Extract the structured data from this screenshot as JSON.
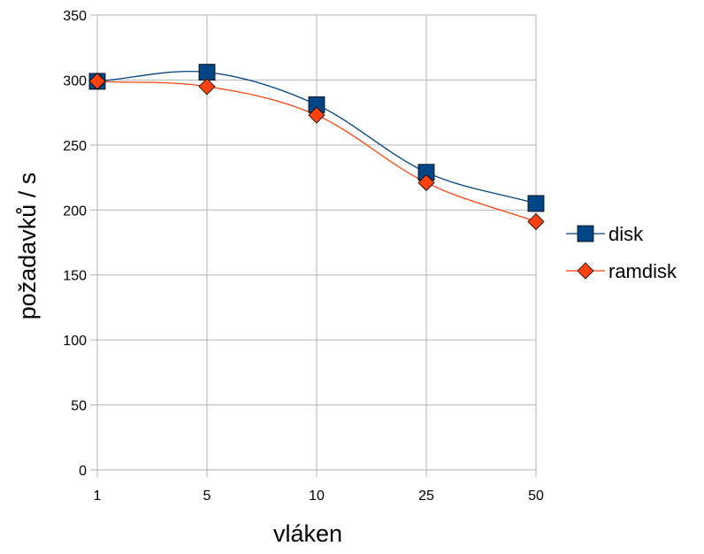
{
  "chart_data": {
    "type": "line",
    "title": "",
    "xlabel": "vláken",
    "ylabel": "požadavků / s",
    "categories": [
      "1",
      "5",
      "10",
      "25",
      "50"
    ],
    "ylim": [
      0,
      350
    ],
    "yticks": [
      0,
      50,
      100,
      150,
      200,
      250,
      300,
      350
    ],
    "grid": true,
    "smoothed": true,
    "legend_position": "right",
    "series": [
      {
        "name": "disk",
        "values": [
          299,
          306,
          281,
          229,
          205
        ],
        "color": "#004586",
        "marker": "square"
      },
      {
        "name": "ramdisk",
        "values": [
          299,
          295,
          273,
          221,
          191
        ],
        "color": "#ff420e",
        "marker": "diamond"
      }
    ]
  }
}
